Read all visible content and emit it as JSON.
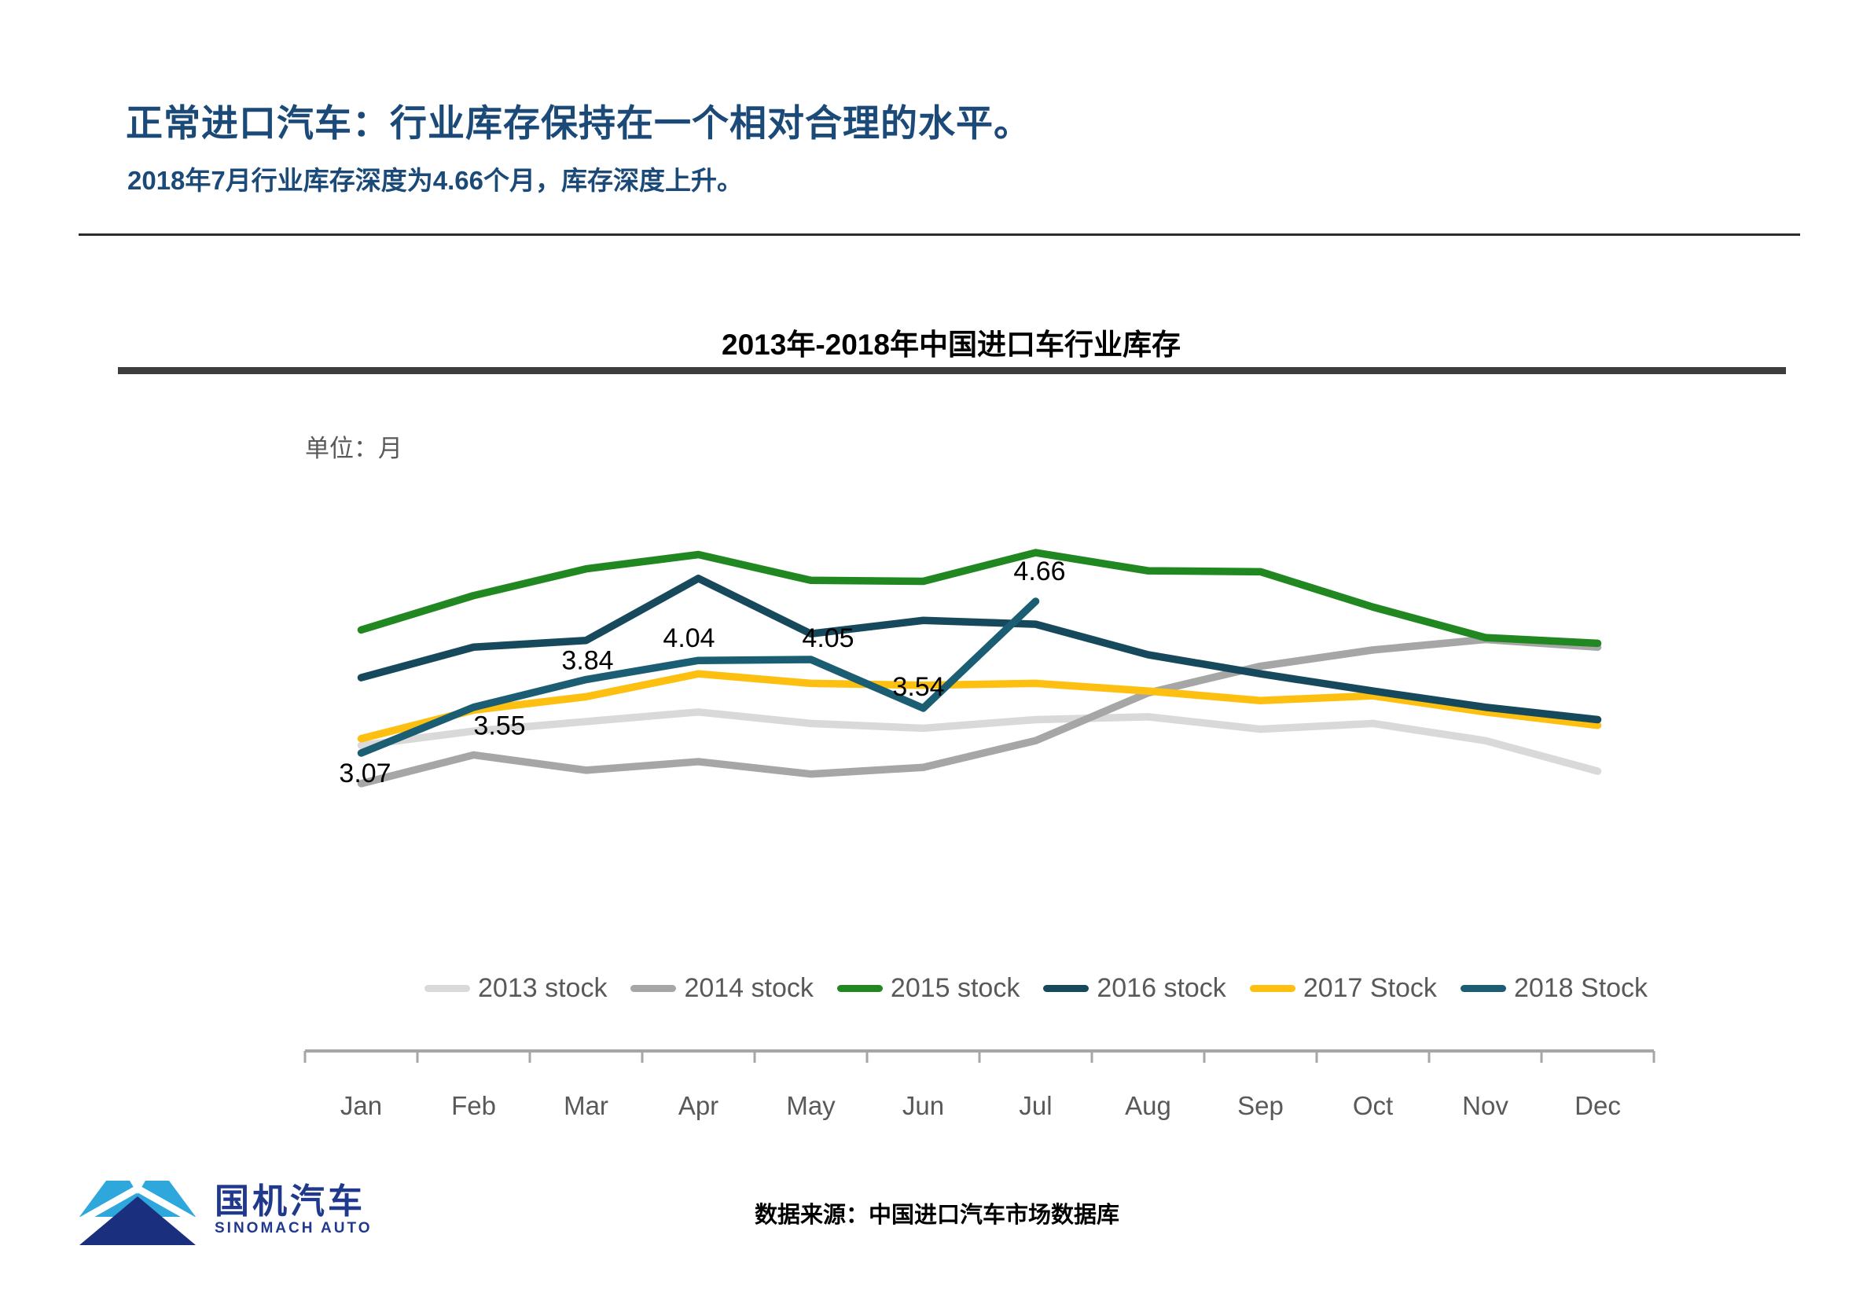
{
  "slide": {
    "title": "正常进口汽车：行业库存保持在一个相对合理的水平。",
    "subtitle": "2018年7月行业库存深度为4.66个月，库存深度上升。",
    "source": "数据来源：中国进口汽车市场数据库",
    "logo": {
      "cn": "国机汽车",
      "en": "SINOMACH AUTO"
    }
  },
  "chart_data": {
    "type": "line",
    "title": "2013年-2018年中国进口车行业库存",
    "unit_label": "单位：月",
    "ylabel": "月",
    "ylim": [
      0,
      6
    ],
    "grid": false,
    "legend_position": "bottom",
    "categories": [
      "Jan",
      "Feb",
      "Mar",
      "Apr",
      "May",
      "Jun",
      "Jul",
      "Aug",
      "Sep",
      "Oct",
      "Nov",
      "Dec"
    ],
    "series": [
      {
        "name": "2013 stock",
        "color": "#d9d9d9",
        "values": [
          3.15,
          3.3,
          3.4,
          3.5,
          3.38,
          3.33,
          3.42,
          3.45,
          3.32,
          3.38,
          3.2,
          2.88
        ]
      },
      {
        "name": "2014 stock",
        "color": "#a6a6a6",
        "values": [
          2.75,
          3.05,
          2.89,
          2.98,
          2.85,
          2.92,
          3.2,
          3.7,
          3.98,
          4.15,
          4.26,
          4.18
        ]
      },
      {
        "name": "2015 stock",
        "color": "#218721",
        "values": [
          4.36,
          4.72,
          5.0,
          5.15,
          4.88,
          4.87,
          5.17,
          4.98,
          4.97,
          4.6,
          4.28,
          4.22
        ]
      },
      {
        "name": "2016 stock",
        "color": "#17495d",
        "values": [
          3.86,
          4.18,
          4.25,
          4.9,
          4.32,
          4.46,
          4.42,
          4.1,
          3.9,
          3.72,
          3.55,
          3.42
        ]
      },
      {
        "name": "2017 Stock",
        "color": "#fdc010",
        "values": [
          3.22,
          3.52,
          3.66,
          3.9,
          3.8,
          3.78,
          3.8,
          3.72,
          3.62,
          3.67,
          3.5,
          3.36
        ]
      },
      {
        "name": "2018 Stock",
        "color": "#1b5e74",
        "labeled": true,
        "values": [
          3.07,
          3.55,
          3.84,
          4.04,
          4.05,
          3.54,
          4.66
        ]
      }
    ],
    "data_labels": [
      "3.07",
      "3.55",
      "3.84",
      "4.04",
      "4.05",
      "3.54",
      "4.66"
    ]
  }
}
